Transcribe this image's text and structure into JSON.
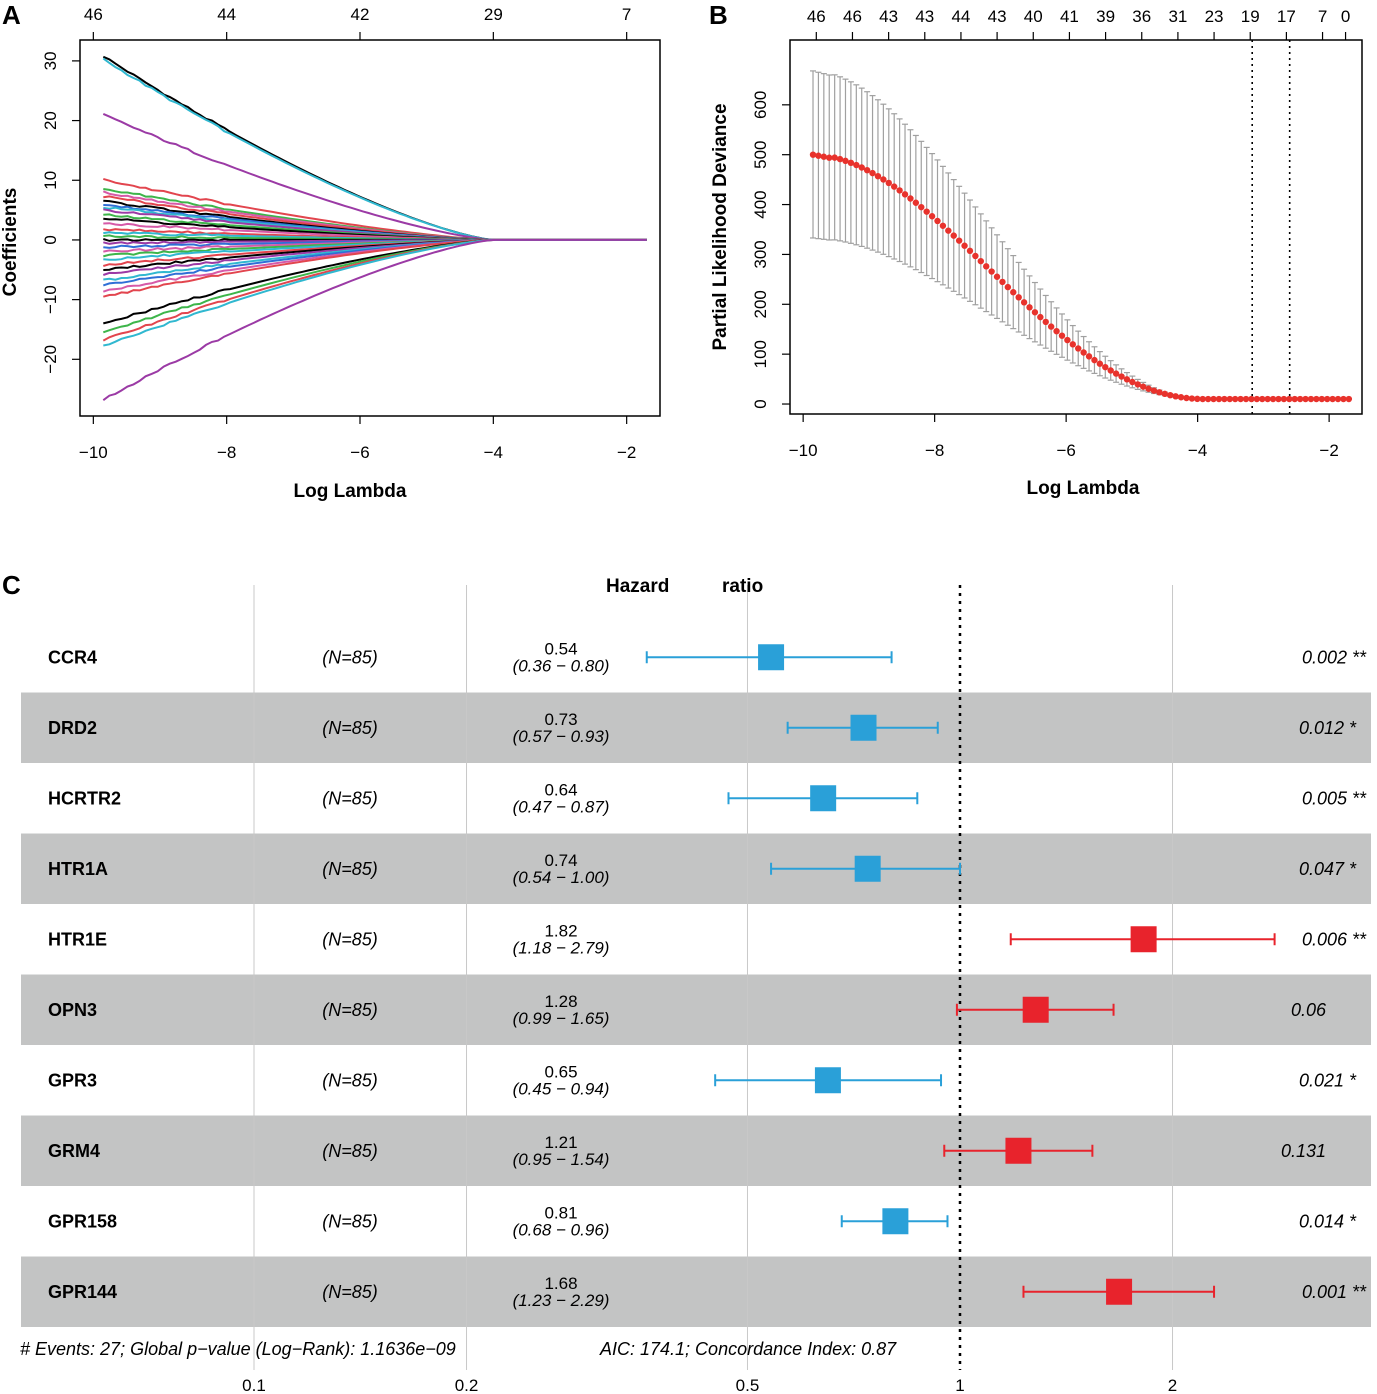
{
  "panelA": {
    "letter": "A",
    "xlabel": "Log Lambda",
    "ylabel": "Coefficients",
    "xticks": [
      -10,
      -8,
      -6,
      -4,
      -2
    ],
    "xtick_labels": [
      "−10",
      "−8",
      "−6",
      "−4",
      "−2"
    ],
    "yticks": [
      30,
      20,
      10,
      0,
      -10,
      -20
    ],
    "ytick_labels": [
      "30",
      "20",
      "10",
      "0",
      "−10",
      "−20"
    ],
    "top_ticks": [
      -10,
      -8,
      -6,
      -4,
      -2
    ],
    "top_labels": [
      "46",
      "44",
      "42",
      "29",
      "7"
    ],
    "xlim": [
      -10.2,
      -1.5
    ],
    "ylim": [
      -29.5,
      33.5
    ]
  },
  "panelB": {
    "letter": "B",
    "xlabel": "Log Lambda",
    "ylabel": "Partial Likelihood Deviance",
    "xticks": [
      -10,
      -8,
      -6,
      -4,
      -2
    ],
    "xtick_labels": [
      "−10",
      "−8",
      "−6",
      "−4",
      "−2"
    ],
    "yticks": [
      0,
      100,
      200,
      300,
      400,
      500,
      600
    ],
    "ytick_labels": [
      "0",
      "100",
      "200",
      "300",
      "400",
      "500",
      "600"
    ],
    "top_ticks": [
      -9.8,
      -9.25,
      -8.7,
      -8.15,
      -7.6,
      -7.05,
      -6.5,
      -5.95,
      -5.4,
      -4.85,
      -4.3,
      -3.75,
      -3.2,
      -2.65,
      -2.1,
      -1.75
    ],
    "top_labels": [
      "46",
      "46",
      "43",
      "43",
      "44",
      "43",
      "40",
      "41",
      "39",
      "36",
      "31",
      "23",
      "19",
      "17",
      "7",
      "0"
    ],
    "vlines": [
      -3.17,
      -2.6
    ],
    "xlim": [
      -10.2,
      -1.5
    ],
    "ylim": [
      -20,
      730
    ]
  },
  "chart_data": [
    {
      "type": "line",
      "title": "",
      "xlabel": "Log Lambda",
      "ylabel": "Coefficients",
      "xlim": [
        -10.2,
        -1.5
      ],
      "ylim": [
        -29.5,
        33.5
      ],
      "x_range": [
        -9.85,
        -1.7
      ],
      "zero_at": -4.0,
      "series": [
        {
          "name": "path",
          "start": 30.8,
          "color": "#000000"
        },
        {
          "name": "path",
          "start": 30.3,
          "color": "#30b8d0"
        },
        {
          "name": "path",
          "start": 21.0,
          "color": "#9b3aa5"
        },
        {
          "name": "path",
          "start": 10.1,
          "color": "#e2454e"
        },
        {
          "name": "path",
          "start": 8.6,
          "color": "#3db54a"
        },
        {
          "name": "path",
          "start": 8.0,
          "color": "#d65aa8"
        },
        {
          "name": "path",
          "start": 7.3,
          "color": "#e2454e"
        },
        {
          "name": "path",
          "start": 6.5,
          "color": "#000000"
        },
        {
          "name": "path",
          "start": 6.0,
          "color": "#2f6fd6"
        },
        {
          "name": "path",
          "start": 5.5,
          "color": "#30b8d0"
        },
        {
          "name": "path",
          "start": 5.0,
          "color": "#9b3aa5"
        },
        {
          "name": "path",
          "start": 4.2,
          "color": "#3db54a"
        },
        {
          "name": "path",
          "start": 3.6,
          "color": "#000000"
        },
        {
          "name": "path",
          "start": 2.8,
          "color": "#d65aa8"
        },
        {
          "name": "path",
          "start": 1.8,
          "color": "#e2454e"
        },
        {
          "name": "path",
          "start": 1.2,
          "color": "#30b8d0"
        },
        {
          "name": "path",
          "start": 0.6,
          "color": "#3db54a"
        },
        {
          "name": "path",
          "start": 0.0,
          "color": "#000000"
        },
        {
          "name": "path",
          "start": -0.5,
          "color": "#9b3aa5"
        },
        {
          "name": "path",
          "start": -1.2,
          "color": "#2f6fd6"
        },
        {
          "name": "path",
          "start": -1.9,
          "color": "#d65aa8"
        },
        {
          "name": "path",
          "start": -2.6,
          "color": "#3db54a"
        },
        {
          "name": "path",
          "start": -3.3,
          "color": "#30b8d0"
        },
        {
          "name": "path",
          "start": -4.2,
          "color": "#e2454e"
        },
        {
          "name": "path",
          "start": -5.0,
          "color": "#000000"
        },
        {
          "name": "path",
          "start": -5.8,
          "color": "#9b3aa5"
        },
        {
          "name": "path",
          "start": -6.8,
          "color": "#30b8d0"
        },
        {
          "name": "path",
          "start": -7.6,
          "color": "#2f6fd6"
        },
        {
          "name": "path",
          "start": -8.6,
          "color": "#d65aa8"
        },
        {
          "name": "path",
          "start": -9.5,
          "color": "#e2454e"
        },
        {
          "name": "path",
          "start": -14.0,
          "color": "#000000"
        },
        {
          "name": "path",
          "start": -15.5,
          "color": "#3db54a"
        },
        {
          "name": "path",
          "start": -16.8,
          "color": "#e2454e"
        },
        {
          "name": "path",
          "start": -17.8,
          "color": "#30b8d0"
        },
        {
          "name": "path",
          "start": -26.8,
          "color": "#9b3aa5"
        }
      ]
    },
    {
      "type": "scatter",
      "title": "",
      "xlabel": "Log Lambda",
      "ylabel": "Partial Likelihood Deviance",
      "xlim": [
        -10.2,
        -1.5
      ],
      "ylim": [
        -20,
        730
      ],
      "x_range": [
        -9.85,
        -1.7
      ],
      "points": 100,
      "mean_start": 500,
      "mean_floor": 10,
      "upper_start": 668,
      "lower_start": 333,
      "error_bars": true
    },
    {
      "type": "forest",
      "title": "Hazard ratio",
      "xscale": "log",
      "xticks": [
        0.1,
        0.2,
        0.5,
        1,
        2
      ],
      "xtick_labels": [
        "0.1",
        "0.2",
        "0.5",
        "1",
        "2"
      ],
      "reference": 1,
      "rows": [
        {
          "gene": "CCR4",
          "n": "(N=85)",
          "hr": 0.54,
          "lo": 0.36,
          "hi": 0.8,
          "hr_label": "0.54",
          "ci_label": "(0.36 − 0.80)",
          "p": "0.002 **",
          "color": "#2aa0d8"
        },
        {
          "gene": "DRD2",
          "n": "(N=85)",
          "hr": 0.73,
          "lo": 0.57,
          "hi": 0.93,
          "hr_label": "0.73",
          "ci_label": "(0.57 − 0.93)",
          "p": "0.012 *",
          "color": "#2aa0d8"
        },
        {
          "gene": "HCRTR2",
          "n": "(N=85)",
          "hr": 0.64,
          "lo": 0.47,
          "hi": 0.87,
          "hr_label": "0.64",
          "ci_label": "(0.47 − 0.87)",
          "p": "0.005 **",
          "color": "#2aa0d8"
        },
        {
          "gene": "HTR1A",
          "n": "(N=85)",
          "hr": 0.74,
          "lo": 0.54,
          "hi": 1.0,
          "hr_label": "0.74",
          "ci_label": "(0.54 − 1.00)",
          "p": "0.047 *",
          "color": "#2aa0d8"
        },
        {
          "gene": "HTR1E",
          "n": "(N=85)",
          "hr": 1.82,
          "lo": 1.18,
          "hi": 2.79,
          "hr_label": "1.82",
          "ci_label": "(1.18 − 2.79)",
          "p": "0.006 **",
          "color": "#e8232c"
        },
        {
          "gene": "OPN3",
          "n": "(N=85)",
          "hr": 1.28,
          "lo": 0.99,
          "hi": 1.65,
          "hr_label": "1.28",
          "ci_label": "(0.99 − 1.65)",
          "p": "0.06",
          "color": "#e8232c"
        },
        {
          "gene": "GPR3",
          "n": "(N=85)",
          "hr": 0.65,
          "lo": 0.45,
          "hi": 0.94,
          "hr_label": "0.65",
          "ci_label": "(0.45 − 0.94)",
          "p": "0.021 *",
          "color": "#2aa0d8"
        },
        {
          "gene": "GRM4",
          "n": "(N=85)",
          "hr": 1.21,
          "lo": 0.95,
          "hi": 1.54,
          "hr_label": "1.21",
          "ci_label": "(0.95 − 1.54)",
          "p": "0.131",
          "color": "#e8232c"
        },
        {
          "gene": "GPR158",
          "n": "(N=85)",
          "hr": 0.81,
          "lo": 0.68,
          "hi": 0.96,
          "hr_label": "0.81",
          "ci_label": "(0.68 − 0.96)",
          "p": "0.014 *",
          "color": "#2aa0d8"
        },
        {
          "gene": "GPR144",
          "n": "(N=85)",
          "hr": 1.68,
          "lo": 1.23,
          "hi": 2.29,
          "hr_label": "1.68",
          "ci_label": "(1.23 − 2.29)",
          "p": "0.001 **",
          "color": "#e8232c"
        }
      ]
    }
  ],
  "panelC": {
    "letter": "C",
    "title_word1": "Hazard",
    "title_word2": "ratio",
    "footer_left": "# Events: 27; Global p−value (Log−Rank): 1.1636e−09",
    "footer_right": "AIC: 174.1; Concordance Index: 0.87"
  },
  "colors": {
    "shade": "#c3c4c4",
    "protective": "#2aa0d8",
    "risk": "#e8232c",
    "cv_point": "#e8322c",
    "errbar": "#a0a0a0"
  }
}
